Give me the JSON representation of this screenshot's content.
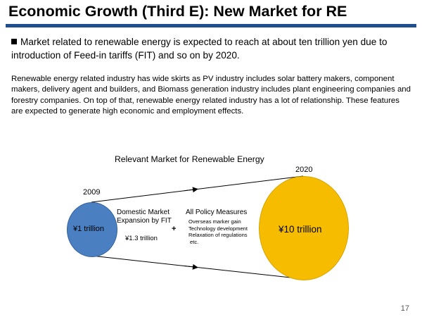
{
  "slide": {
    "title": "Economic Growth (Third E): New Market for RE",
    "bullet": "Market related to renewable energy is expected to reach at about ten trillion yen due to introduction of Feed-in tariffs (FIT) and so on by 2020.",
    "paragraph": "Renewable  energy related industry has wide skirts as PV industry includes solar battery makers, component makers, delivery agent and builders, and Biomass generation industry includes plant engineering companies and forestry companies. On top of that, renewable energy related industry has a lot of relationship. These features are expected to generate high economic and employment effects.",
    "page_number": "17"
  },
  "diagram": {
    "title": "Relevant Market for Renewable Energy",
    "start": {
      "year": "2009",
      "value": "¥1 trillion",
      "color": "#4a7fc1"
    },
    "end": {
      "year": "2020",
      "value": "¥10 trillion",
      "color": "#f6bd00"
    },
    "domestic_market": {
      "line1": "Domestic Market",
      "line2": "Expansion by FIT",
      "value": "¥1.3 trillion"
    },
    "plus": "+",
    "policy": {
      "heading": "All Policy Measures",
      "items": [
        "Overseas marker gain",
        "Technology development",
        "Relaxation of regulations",
        "etc."
      ]
    }
  }
}
